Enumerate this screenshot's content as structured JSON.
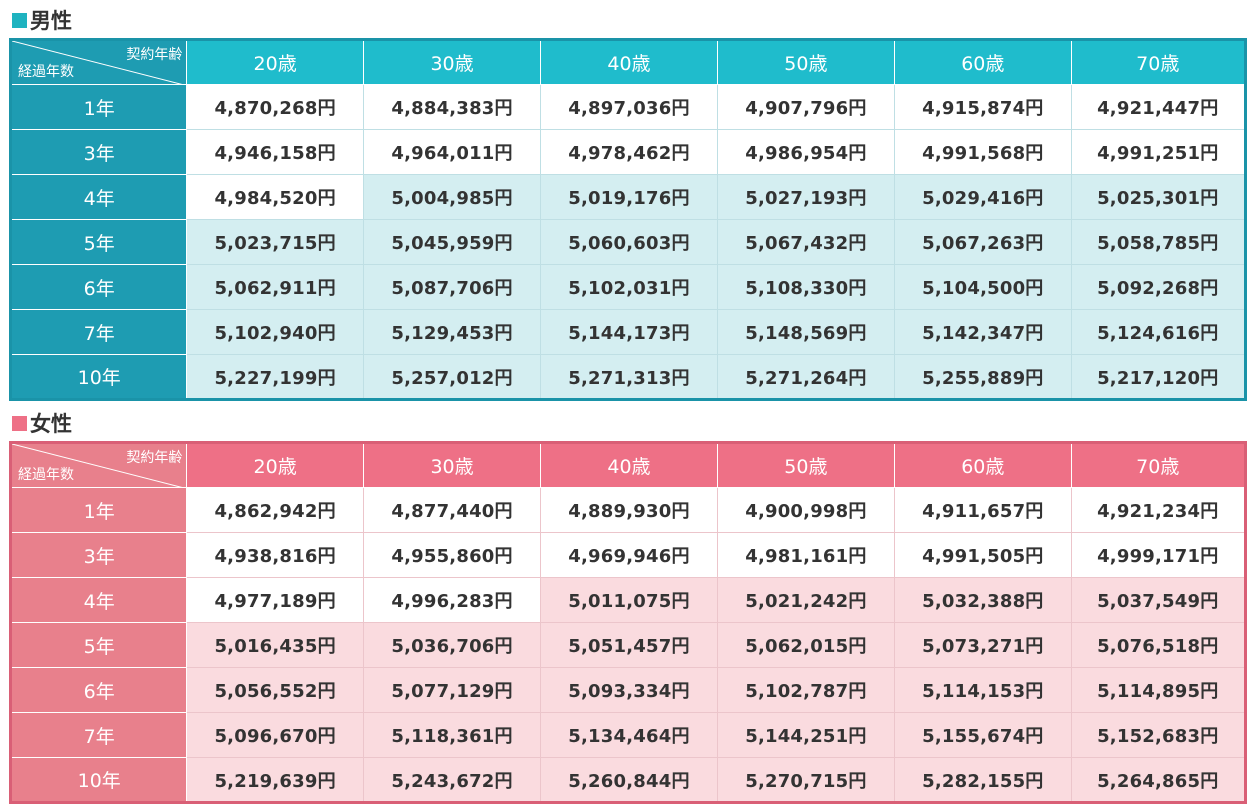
{
  "male": {
    "title": "男性",
    "marker_color": "#1fb3c0",
    "corner_top": "契約年齢",
    "corner_bottom": "経過年数",
    "columns": [
      "20歳",
      "30歳",
      "40歳",
      "50歳",
      "60歳",
      "70歳"
    ],
    "rows": [
      {
        "label": "1年",
        "values": [
          "4,870,268円",
          "4,884,383円",
          "4,897,036円",
          "4,907,796円",
          "4,915,874円",
          "4,921,447円"
        ]
      },
      {
        "label": "3年",
        "values": [
          "4,946,158円",
          "4,964,011円",
          "4,978,462円",
          "4,986,954円",
          "4,991,568円",
          "4,991,251円"
        ]
      },
      {
        "label": "4年",
        "values": [
          "4,984,520円",
          "5,004,985円",
          "5,019,176円",
          "5,027,193円",
          "5,029,416円",
          "5,025,301円"
        ]
      },
      {
        "label": "5年",
        "values": [
          "5,023,715円",
          "5,045,959円",
          "5,060,603円",
          "5,067,432円",
          "5,067,263円",
          "5,058,785円"
        ]
      },
      {
        "label": "6年",
        "values": [
          "5,062,911円",
          "5,087,706円",
          "5,102,031円",
          "5,108,330円",
          "5,104,500円",
          "5,092,268円"
        ]
      },
      {
        "label": "7年",
        "values": [
          "5,102,940円",
          "5,129,453円",
          "5,144,173円",
          "5,148,569円",
          "5,142,347円",
          "5,124,616円"
        ]
      },
      {
        "label": "10年",
        "values": [
          "5,227,199円",
          "5,257,012円",
          "5,271,313円",
          "5,271,264円",
          "5,255,889円",
          "5,217,120円"
        ]
      }
    ]
  },
  "female": {
    "title": "女性",
    "marker_color": "#ee7086",
    "corner_top": "契約年齢",
    "corner_bottom": "経過年数",
    "columns": [
      "20歳",
      "30歳",
      "40歳",
      "50歳",
      "60歳",
      "70歳"
    ],
    "rows": [
      {
        "label": "1年",
        "values": [
          "4,862,942円",
          "4,877,440円",
          "4,889,930円",
          "4,900,998円",
          "4,911,657円",
          "4,921,234円"
        ]
      },
      {
        "label": "3年",
        "values": [
          "4,938,816円",
          "4,955,860円",
          "4,969,946円",
          "4,981,161円",
          "4,991,505円",
          "4,999,171円"
        ]
      },
      {
        "label": "4年",
        "values": [
          "4,977,189円",
          "4,996,283円",
          "5,011,075円",
          "5,021,242円",
          "5,032,388円",
          "5,037,549円"
        ]
      },
      {
        "label": "5年",
        "values": [
          "5,016,435円",
          "5,036,706円",
          "5,051,457円",
          "5,062,015円",
          "5,073,271円",
          "5,076,518円"
        ]
      },
      {
        "label": "6年",
        "values": [
          "5,056,552円",
          "5,077,129円",
          "5,093,334円",
          "5,102,787円",
          "5,114,153円",
          "5,114,895円"
        ]
      },
      {
        "label": "7年",
        "values": [
          "5,096,670円",
          "5,118,361円",
          "5,134,464円",
          "5,144,251円",
          "5,155,674円",
          "5,152,683円"
        ]
      },
      {
        "label": "10年",
        "values": [
          "5,219,639円",
          "5,243,672円",
          "5,260,844円",
          "5,270,715円",
          "5,282,155円",
          "5,264,865円"
        ]
      }
    ]
  }
}
